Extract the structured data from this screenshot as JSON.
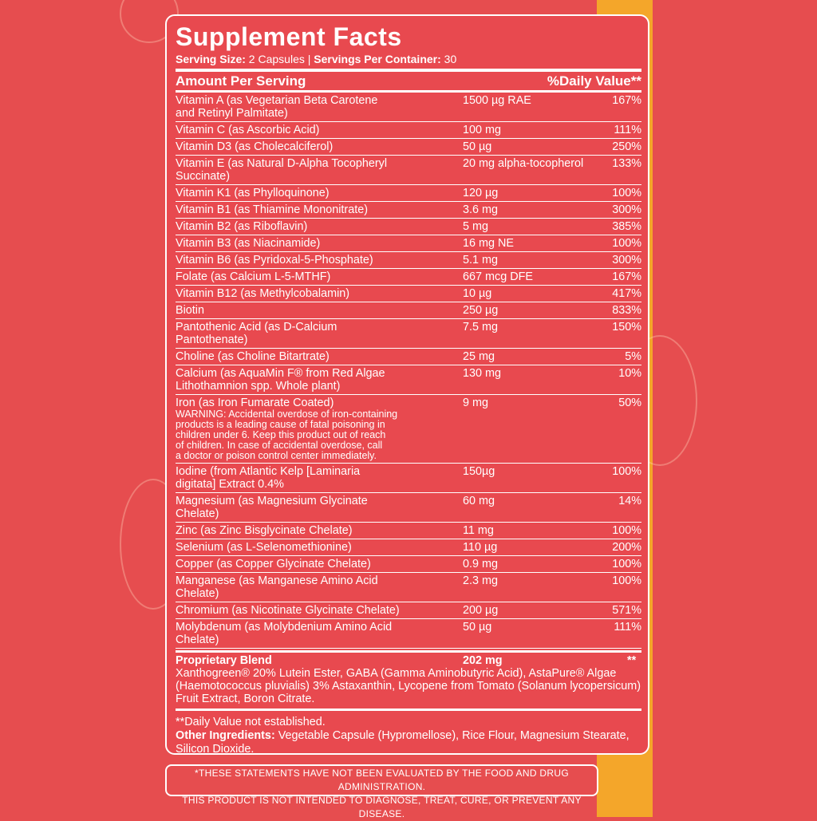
{
  "colors": {
    "background": "#e64d4f",
    "accent_strip": "#f4a62a",
    "text": "#ffffff"
  },
  "title": "Supplement Facts",
  "serving": {
    "size_label": "Serving Size:",
    "size_value": " 2 Capsules | ",
    "per_container_label": "Servings Per Container:",
    "per_container_value": " 30"
  },
  "header": {
    "amount": "Amount Per Serving",
    "dv": "%Daily Value**"
  },
  "rows": [
    {
      "name": "Vitamin A (as Vegetarian Beta Carotene\nand Retinyl Palmitate)",
      "amount": "1500 µg RAE",
      "dv": "167%"
    },
    {
      "name": "Vitamin C (as Ascorbic Acid)",
      "amount": "100 mg",
      "dv": "111%"
    },
    {
      "name": "Vitamin D3 (as Cholecalciferol)",
      "amount": "50 µg",
      "dv": "250%"
    },
    {
      "name": "Vitamin E (as Natural D-Alpha Tocopheryl\nSuccinate)",
      "amount": "20 mg alpha-tocopherol",
      "dv": "133%"
    },
    {
      "name": "Vitamin K1 (as Phylloquinone)",
      "amount": "120 µg",
      "dv": "100%"
    },
    {
      "name": "Vitamin B1 (as Thiamine Mononitrate)",
      "amount": "3.6 mg",
      "dv": "300%"
    },
    {
      "name": "Vitamin B2 (as Riboflavin)",
      "amount": "5 mg",
      "dv": "385%"
    },
    {
      "name": "Vitamin B3 (as Niacinamide)",
      "amount": "16 mg NE",
      "dv": "100%"
    },
    {
      "name": "Vitamin B6 (as Pyridoxal-5-Phosphate)",
      "amount": "5.1 mg",
      "dv": "300%"
    },
    {
      "name": "Folate (as Calcium L-5-MTHF)",
      "amount": "667 mcg DFE",
      "dv": "167%"
    },
    {
      "name": "Vitamin B12 (as Methylcobalamin)",
      "amount": "10 µg",
      "dv": "417%"
    },
    {
      "name": "Biotin",
      "amount": "250 µg",
      "dv": "833%"
    },
    {
      "name": "Pantothenic Acid (as D-Calcium\nPantothenate)",
      "amount": "7.5 mg",
      "dv": "150%"
    },
    {
      "name": "Choline (as Choline Bitartrate)",
      "amount": "25 mg",
      "dv": "5%"
    },
    {
      "name": "Calcium (as AquaMin F® from Red Algae\nLithothamnion spp. Whole plant)",
      "amount": "130 mg",
      "dv": "10%"
    },
    {
      "name": "Iron (as Iron Fumarate Coated)",
      "amount": "9 mg",
      "dv": "50%",
      "warning": "WARNING: Accidental overdose of iron-containing\nproducts is a leading cause of fatal poisoning in\nchildren under 6. Keep this product out of reach\nof children. In case of accidental overdose, call\na doctor or poison control center immediately."
    },
    {
      "name": "Iodine (from Atlantic Kelp [Laminaria\ndigitata] Extract 0.4%",
      "amount": "150µg",
      "dv": "100%"
    },
    {
      "name": "Magnesium (as Magnesium Glycinate\nChelate)",
      "amount": "60 mg",
      "dv": "14%"
    },
    {
      "name": "Zinc (as Zinc Bisglycinate Chelate)",
      "amount": "11 mg",
      "dv": "100%"
    },
    {
      "name": "Selenium (as L-Selenomethionine)",
      "amount": "110 µg",
      "dv": "200%"
    },
    {
      "name": "Copper (as Copper Glycinate Chelate)",
      "amount": "0.9 mg",
      "dv": "100%"
    },
    {
      "name": "Manganese (as Manganese Amino Acid\nChelate)",
      "amount": "2.3 mg",
      "dv": "100%"
    },
    {
      "name": "Chromium (as Nicotinate Glycinate Chelate)",
      "amount": "200 µg",
      "dv": "571%"
    },
    {
      "name": "Molybdenum (as Molybdenium Amino Acid\nChelate)",
      "amount": "50 µg",
      "dv": "111%"
    }
  ],
  "blend": {
    "name": "Proprietary Blend",
    "amount": "202 mg",
    "dv": "**",
    "ingredients": "Xanthogreen® 20% Lutein Ester, GABA (Gamma Aminobutyric Acid), AstaPure® Algae (Haemotococcus pluvialis) 3% Astaxanthin, Lycopene from Tomato (Solanum lycopersicum) Fruit Extract, Boron Citrate."
  },
  "footnote": "**Daily Value not established.",
  "other": {
    "label": "Other Ingredients:",
    "value": " Vegetable Capsule (Hypromellose), Rice Flour, Magnesium Stearate, Silicon Dioxide."
  },
  "disclaimer": {
    "line1": "*THESE STATEMENTS HAVE NOT BEEN EVALUATED BY THE FOOD AND DRUG ADMINISTRATION.",
    "line2": "THIS PRODUCT IS NOT INTENDED TO DIAGNOSE, TREAT, CURE, OR PREVENT ANY DISEASE."
  }
}
